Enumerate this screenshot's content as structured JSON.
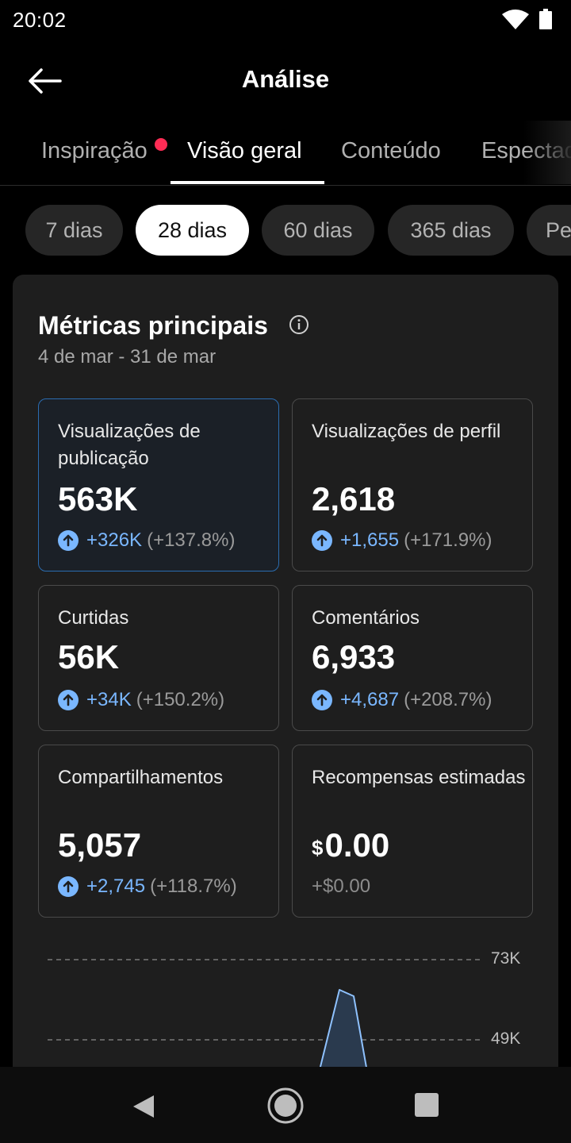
{
  "status": {
    "time": "20:02"
  },
  "header": {
    "title": "Análise"
  },
  "tabs": [
    {
      "label": "Inspiração"
    },
    {
      "label": "Visão geral"
    },
    {
      "label": "Conteúdo"
    },
    {
      "label": "Espectadores"
    }
  ],
  "chips": [
    {
      "label": "7 dias"
    },
    {
      "label": "28 dias"
    },
    {
      "label": "60 dias"
    },
    {
      "label": "365 dias"
    },
    {
      "label": "Personalizado"
    }
  ],
  "metrics": {
    "title": "Métricas principais",
    "range": "4 de mar - 31 de mar",
    "items": [
      {
        "label": "Visualizações de publicação",
        "value": "563K",
        "delta": "+326K",
        "pct": "(+137.8%)"
      },
      {
        "label": "Visualizações de perfil",
        "value": "2,618",
        "delta": "+1,655",
        "pct": "(+171.9%)"
      },
      {
        "label": "Curtidas",
        "value": "56K",
        "delta": "+34K",
        "pct": "(+150.2%)"
      },
      {
        "label": "Comentários",
        "value": "6,933",
        "delta": "+4,687",
        "pct": "(+208.7%)"
      },
      {
        "label": "Compartilhamentos",
        "value": "5,057",
        "delta": "+2,745",
        "pct": "(+118.7%)"
      },
      {
        "label": "Recompensas estimadas",
        "currency": "$",
        "value": "0.00",
        "delta": "+$0.00"
      }
    ]
  },
  "chart_data": {
    "type": "area",
    "y_ticks": [
      "73K",
      "49K"
    ],
    "grid": "dashed",
    "color": "#7ab7ff"
  }
}
